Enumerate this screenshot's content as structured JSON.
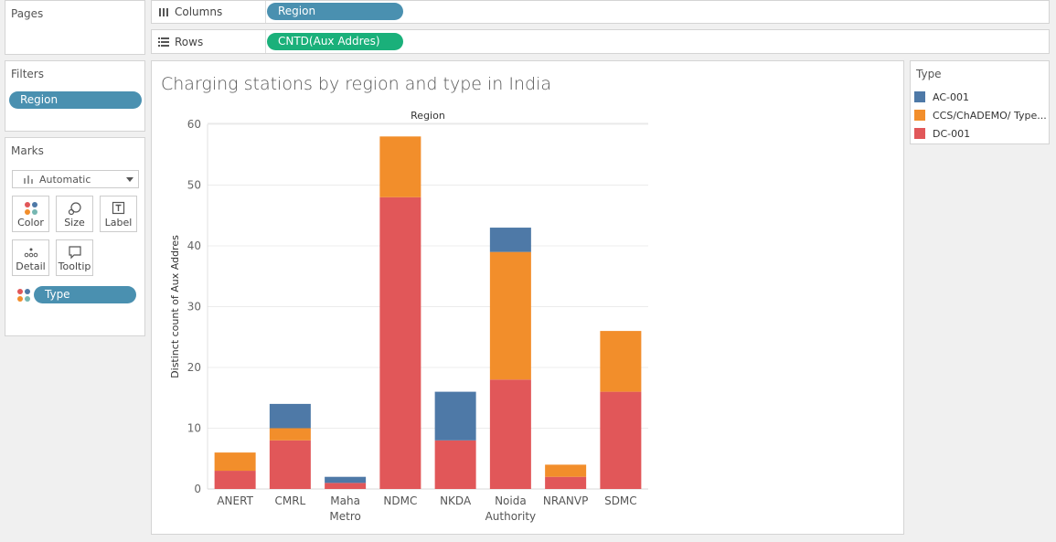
{
  "pages": {
    "title": "Pages"
  },
  "columns_shelf": {
    "label": "Columns",
    "pill": "Region"
  },
  "rows_shelf": {
    "label": "Rows",
    "pill": "CNTD(Aux Addres)"
  },
  "filters": {
    "title": "Filters",
    "pill": "Region"
  },
  "marks": {
    "title": "Marks",
    "mark_type": "Automatic",
    "buttons": [
      "Color",
      "Size",
      "Label",
      "Detail",
      "Tooltip"
    ],
    "color_pill": "Type"
  },
  "legend": {
    "title": "Type",
    "items": [
      {
        "label": "AC-001",
        "color": "#4e79a7"
      },
      {
        "label": "CCS/ChADEMO/ Type...",
        "color": "#f28e2b"
      },
      {
        "label": "DC-001",
        "color": "#e15759"
      }
    ]
  },
  "chart_data": {
    "type": "bar",
    "stacked": true,
    "title": "Charging stations by region and type in India",
    "header": "Region",
    "ylabel": "Distinct count of Aux Addres",
    "ylim": [
      0,
      60
    ],
    "yticks": [
      0,
      10,
      20,
      30,
      40,
      50,
      60
    ],
    "categories": [
      "ANERT",
      "CMRL",
      "Maha Metro",
      "NDMC",
      "NKDA",
      "Noida Authority",
      "NRANVP",
      "SDMC"
    ],
    "category_lines": [
      [
        "ANERT"
      ],
      [
        "CMRL"
      ],
      [
        "Maha",
        "Metro"
      ],
      [
        "NDMC"
      ],
      [
        "NKDA"
      ],
      [
        "Noida",
        "Authority"
      ],
      [
        "NRANVP"
      ],
      [
        "SDMC"
      ]
    ],
    "series": [
      {
        "name": "DC-001",
        "color": "#e15759",
        "values": [
          3,
          8,
          1,
          48,
          8,
          18,
          2,
          16
        ]
      },
      {
        "name": "CCS/ChADEMO/ Type...",
        "color": "#f28e2b",
        "values": [
          3,
          2,
          0,
          10,
          0,
          21,
          2,
          10
        ]
      },
      {
        "name": "AC-001",
        "color": "#4e79a7",
        "values": [
          0,
          4,
          1,
          0,
          8,
          4,
          0,
          0
        ]
      }
    ],
    "grid": true
  }
}
